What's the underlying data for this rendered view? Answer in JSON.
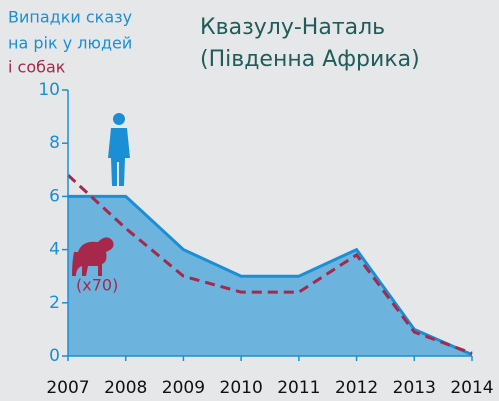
{
  "chart_data": {
    "type": "area",
    "title": [
      "Квазулу-Наталь",
      "(Південна Африка)"
    ],
    "ylabel": [
      "Випадки сказу",
      "на рік у людей",
      "і собак"
    ],
    "annotation": "(x70)",
    "x": [
      2007,
      2008,
      2009,
      2010,
      2011,
      2012,
      2013,
      2014
    ],
    "series": [
      {
        "style": "area",
        "color": "#1a8fd6",
        "fill": "#6cb4dd",
        "values": [
          6,
          6,
          4,
          3,
          3,
          4,
          1,
          0.05
        ]
      },
      {
        "style": "dashed",
        "color": "#a6284a",
        "values": [
          6.8,
          4.8,
          3,
          2.4,
          2.4,
          3.8,
          0.9,
          0.1
        ]
      }
    ],
    "xlim": [
      2007,
      2014
    ],
    "xticks": [
      2007,
      2008,
      2009,
      2010,
      2011,
      2012,
      2013,
      2014
    ],
    "ylim": [
      0,
      10
    ],
    "yticks": [
      0,
      2,
      4,
      6,
      8,
      10
    ]
  }
}
